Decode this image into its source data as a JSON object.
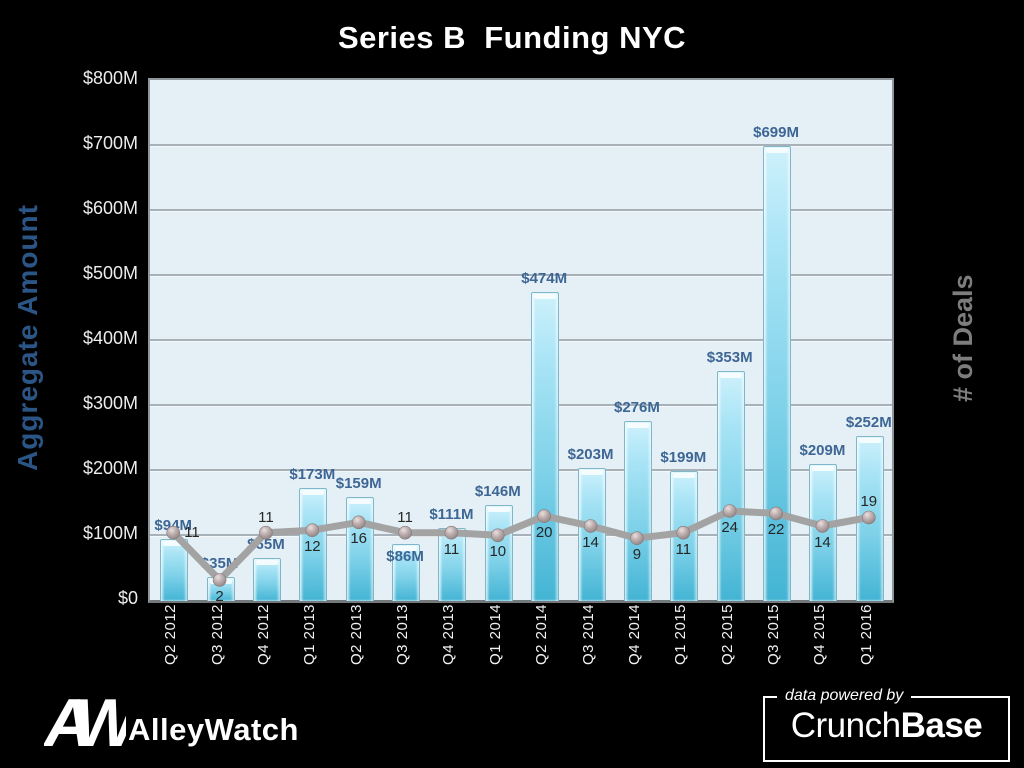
{
  "chart_data": {
    "type": "combo",
    "title": "Series B  Funding NYC",
    "ylabel_left": "Aggregate Amount",
    "ylabel_right": "# of Deals",
    "categories": [
      "Q2 2012",
      "Q3 2012",
      "Q4 2012",
      "Q1 2013",
      "Q2 2013",
      "Q3 2013",
      "Q4 2013",
      "Q1 2014",
      "Q2 2014",
      "Q3 2014",
      "Q4 2014",
      "Q1 2015",
      "Q2 2015",
      "Q3 2015",
      "Q4 2015",
      "Q1 2016"
    ],
    "series": [
      {
        "name": "Aggregate Amount",
        "type": "bar",
        "values": [
          94,
          35,
          65,
          173,
          159,
          86,
          111,
          146,
          474,
          203,
          276,
          199,
          353,
          699,
          209,
          252
        ],
        "labels": [
          "$94M",
          "$35M",
          "$65M",
          "$173M",
          "$159M",
          "$86M",
          "$111M",
          "$146M",
          "$474M",
          "$203M",
          "$276M",
          "$199M",
          "$353M",
          "$699M",
          "$209M",
          "$252M"
        ]
      },
      {
        "name": "# of Deals",
        "type": "line",
        "values": [
          11,
          2,
          11,
          12,
          16,
          11,
          11,
          10,
          20,
          14,
          9,
          11,
          24,
          22,
          14,
          19
        ]
      }
    ],
    "y_ticks": [
      {
        "label": "$800M",
        "value": 800
      },
      {
        "label": "$700M",
        "value": 700
      },
      {
        "label": "$600M",
        "value": 600
      },
      {
        "label": "$500M",
        "value": 500
      },
      {
        "label": "$400M",
        "value": 400
      },
      {
        "label": "$300M",
        "value": 300
      },
      {
        "label": "$200M",
        "value": 200
      },
      {
        "label": "$100M",
        "value": 100
      },
      {
        "label": "$0",
        "value": 0
      }
    ],
    "ylim": [
      0,
      800
    ],
    "grid": true,
    "legend": "none",
    "amount_label_below_indices": [
      5
    ],
    "deal_label_overrides": {
      "0": "right",
      "2": "above",
      "5": "above",
      "15": "above"
    }
  },
  "colors": {
    "background": "#000000",
    "plot_background": "#e4f0f6",
    "bar_top": "#cef1fb",
    "bar_bottom": "#43b4d4",
    "line": "#a3a3a3",
    "amount_label": "#3e6694",
    "axis_title_left": "#2b5585",
    "axis_title_right": "#7d7d7d",
    "tick_label": "#ededed"
  },
  "footer": {
    "logo_monogram": "AW",
    "logo_name": "AlleyWatch",
    "powered_by": "data powered by",
    "brand_regular": "Crunch",
    "brand_bold": "Base"
  }
}
